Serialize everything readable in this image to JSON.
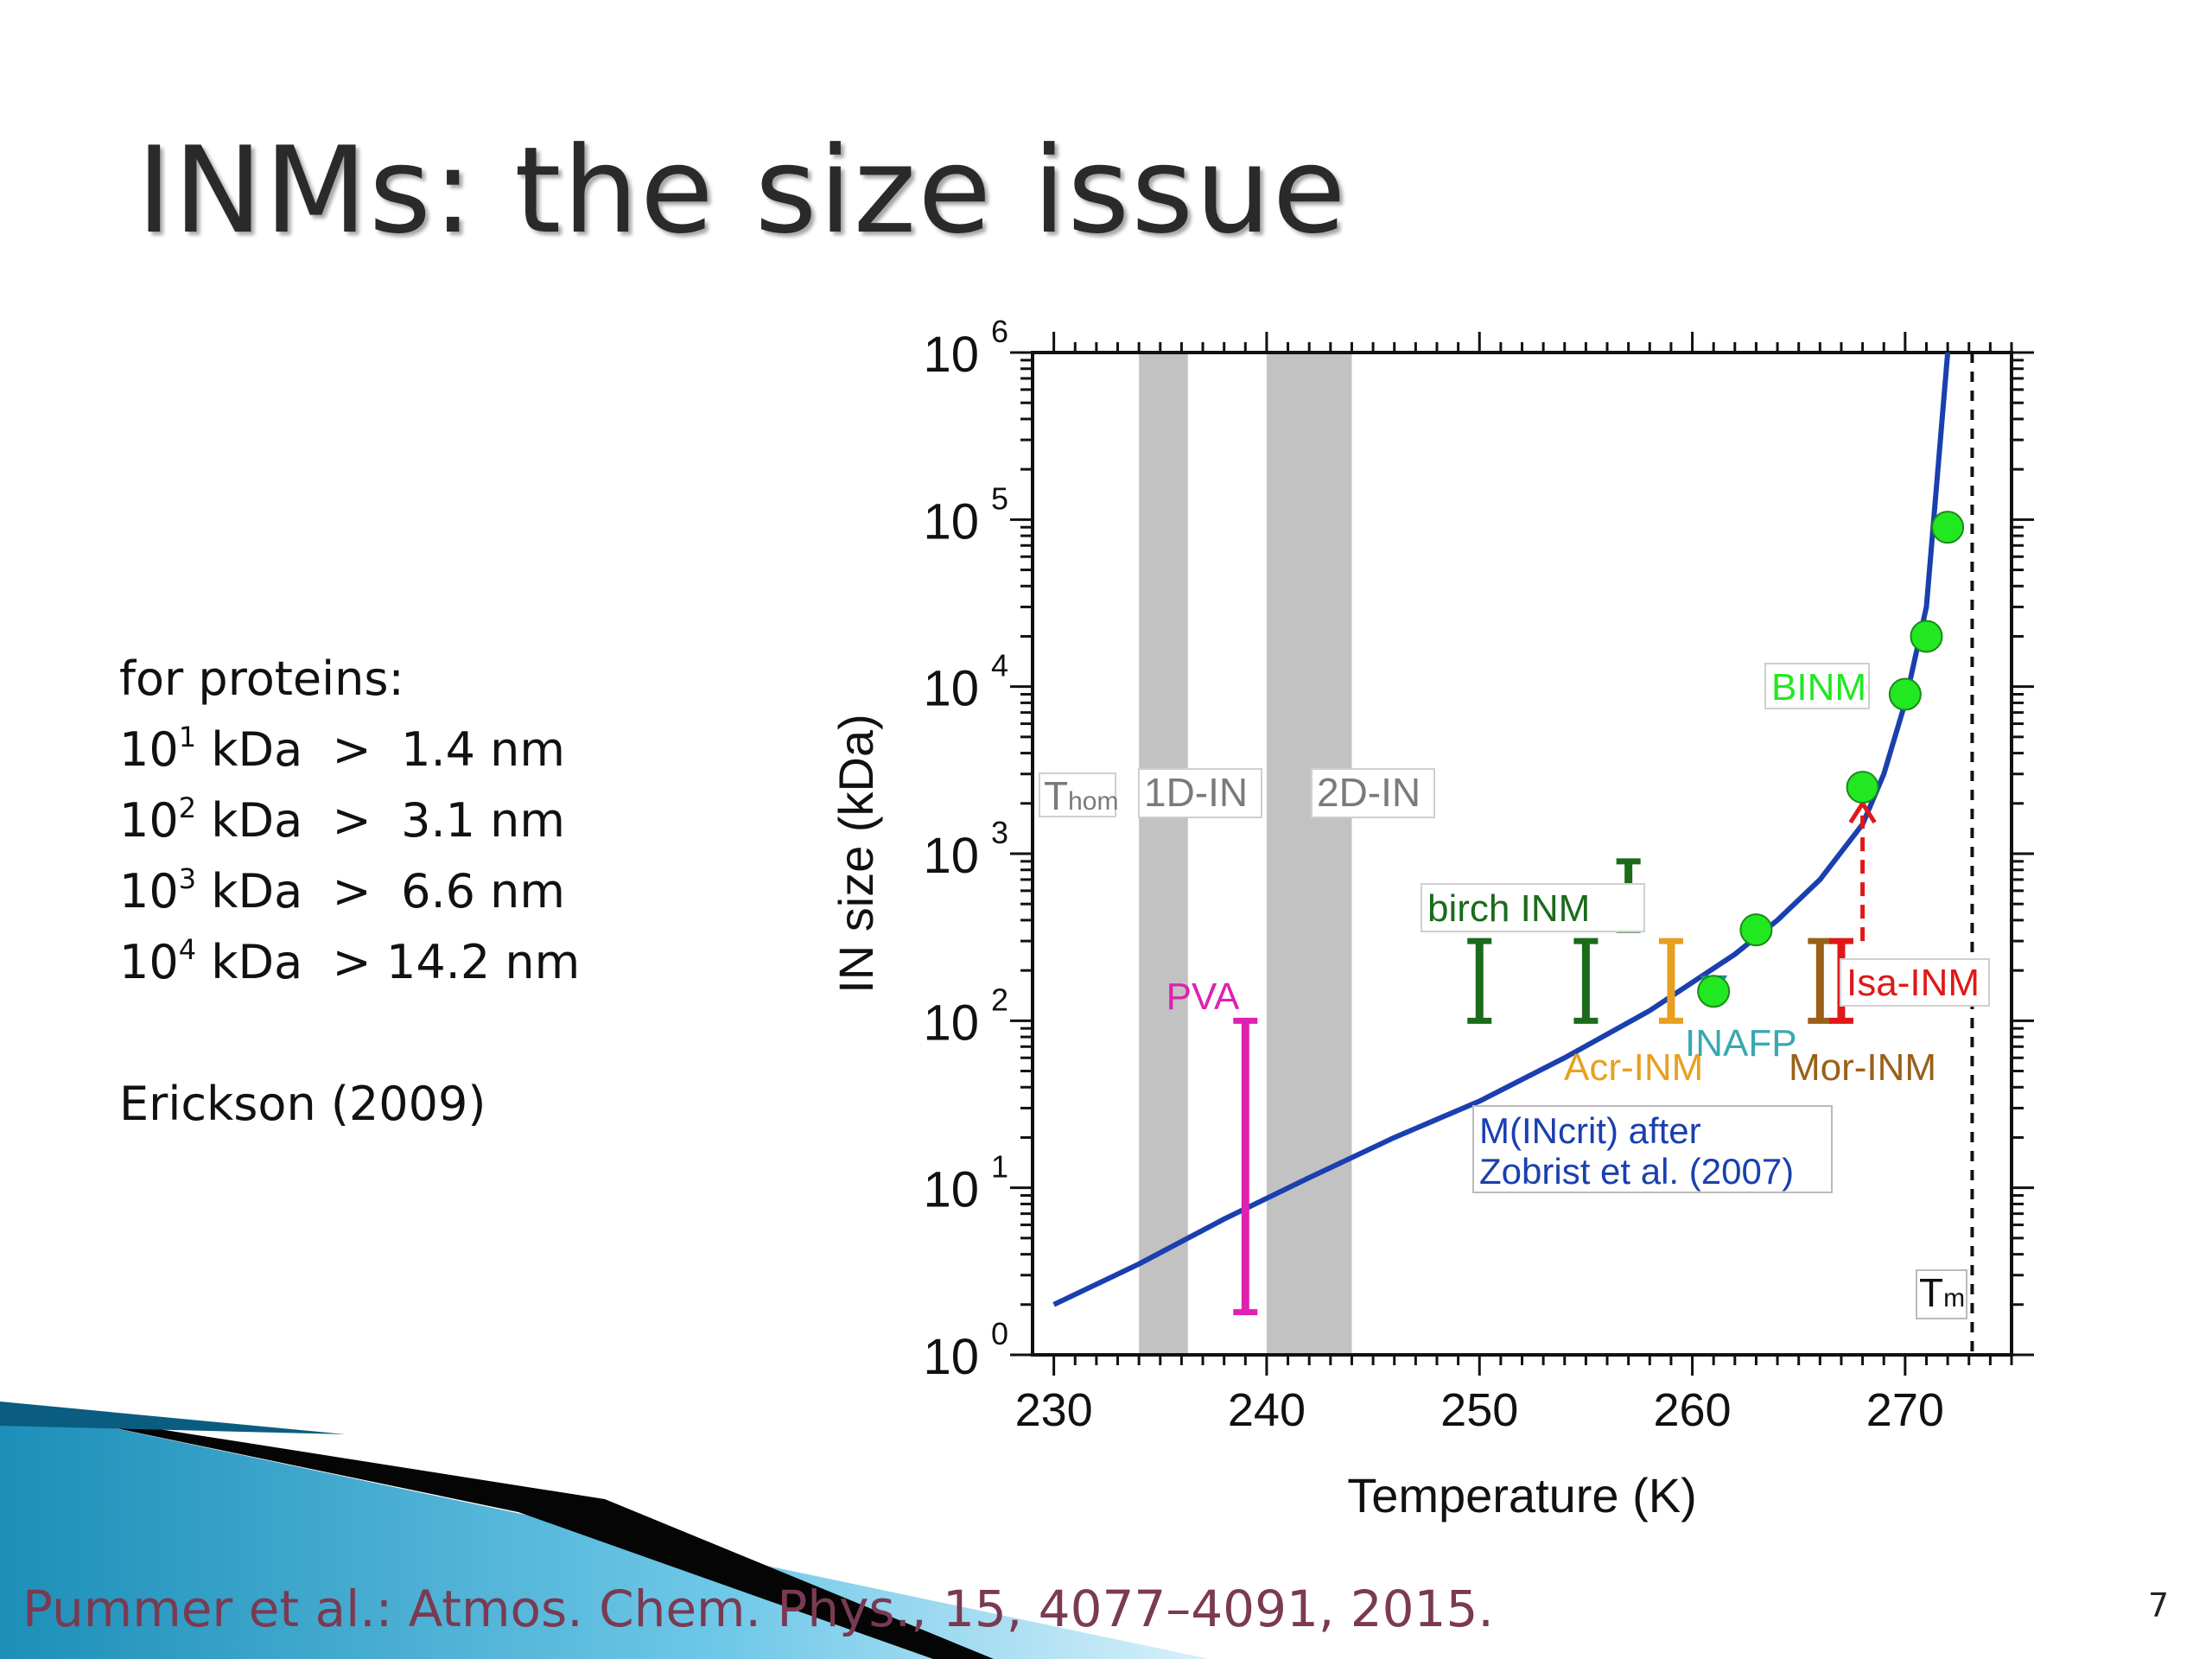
{
  "slide": {
    "title": "INMs: the size issue",
    "notes": {
      "heading": "for proteins:",
      "rows": [
        {
          "base": "10",
          "exp": "1",
          "unit": "kDa",
          "rel": ">",
          "value": "1.4 nm"
        },
        {
          "base": "10",
          "exp": "2",
          "unit": "kDa",
          "rel": ">",
          "value": "3.1 nm"
        },
        {
          "base": "10",
          "exp": "3",
          "unit": "kDa",
          "rel": ">",
          "value": "6.6 nm"
        },
        {
          "base": "10",
          "exp": "4",
          "unit": "kDa",
          "rel": ">",
          "value": "14.2 nm"
        }
      ],
      "reference": "Erickson (2009)"
    },
    "citation": "Pummer et al.: Atmos. Chem. Phys., 15, 4077–4091, 2015.",
    "page_number": "7"
  },
  "chart_data": {
    "type": "scatter",
    "xlabel": "Temperature (K)",
    "ylabel": "IN size (kDa)",
    "xlim": [
      229,
      275
    ],
    "ylim_log10": [
      0,
      6
    ],
    "y_scale": "log",
    "x_ticks": [
      "230",
      "240",
      "250",
      "260",
      "270"
    ],
    "y_tick_exponents": [
      "0",
      "1",
      "2",
      "3",
      "4",
      "5",
      "6"
    ],
    "y_tick_base": "10",
    "grid": false,
    "bands": [
      {
        "label": "1D-IN",
        "x_range": [
          234,
          236.3
        ]
      },
      {
        "label": "2D-IN",
        "x_range": [
          240,
          244
        ]
      }
    ],
    "band_labels": {
      "thom_main": "T",
      "thom_sub": "hom",
      "d1": "1D-IN",
      "d2": "2D-IN"
    },
    "tm": {
      "x": 273.15,
      "label_main": "T",
      "label_sub": "m"
    },
    "curve": {
      "label_line1": "M(INcrit) after",
      "label_line2": "Zobrist et al. (2007)",
      "color": "#1a3faf",
      "x": [
        230,
        234,
        238,
        242,
        246,
        250,
        254,
        258,
        262,
        264,
        266,
        268,
        269,
        270,
        271,
        272
      ],
      "y": [
        2,
        3.5,
        6.5,
        11.5,
        20,
        33,
        60,
        115,
        250,
        400,
        700,
        1500,
        3000,
        8000,
        30000,
        1000000
      ]
    },
    "series": [
      {
        "name": "PVA",
        "kind": "range",
        "color": "#e020b0",
        "x": [
          239
        ],
        "y_low": [
          1.8
        ],
        "y_high": [
          100
        ]
      },
      {
        "name": "birch INM",
        "kind": "range",
        "color": "#1a6b1a",
        "x": [
          250,
          255,
          257
        ],
        "y_low": [
          100,
          100,
          350
        ],
        "y_high": [
          300,
          300,
          900
        ]
      },
      {
        "name": "Acr-INM",
        "kind": "range",
        "color": "#e8a020",
        "x": [
          259
        ],
        "y_low": [
          100
        ],
        "y_high": [
          300
        ]
      },
      {
        "name": "INAFP",
        "kind": "marker",
        "color": "#22d8d8",
        "x": [
          261
        ],
        "y": [
          160
        ]
      },
      {
        "name": "Mor-INM",
        "kind": "range",
        "color": "#9a6018",
        "x": [
          266
        ],
        "y_low": [
          100
        ],
        "y_high": [
          300
        ]
      },
      {
        "name": "Isa-INM",
        "kind": "range",
        "color": "#e01818",
        "x": [
          267
        ],
        "y_low": [
          100
        ],
        "y_high": [
          300
        ]
      },
      {
        "name": "BINM",
        "kind": "points",
        "color": "#22e822",
        "x": [
          261,
          263,
          268,
          270,
          271,
          272
        ],
        "y": [
          150,
          350,
          2500,
          9000,
          20000,
          90000
        ]
      }
    ],
    "arrow": {
      "x": 268,
      "y_from": 300,
      "y_to": 2000,
      "color": "#e01818"
    }
  }
}
